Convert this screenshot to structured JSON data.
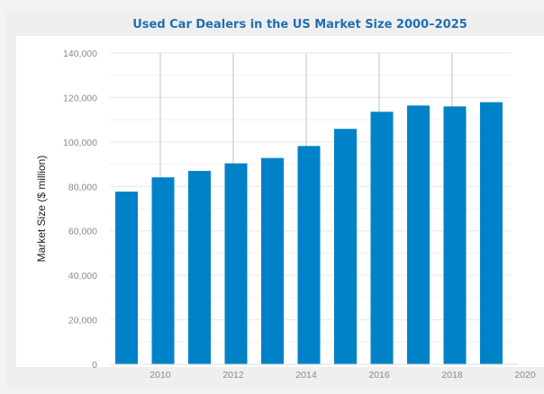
{
  "chart_data": {
    "type": "bar",
    "title": "Used Car Dealers in the US Market Size 2000–2025",
    "xlabel": "",
    "ylabel": "Market Size ($ million)",
    "categories": [
      2009,
      2010,
      2011,
      2012,
      2013,
      2014,
      2015,
      2016,
      2017,
      2018,
      2019
    ],
    "values": [
      77700,
      84100,
      87000,
      90400,
      92800,
      98200,
      105900,
      113600,
      116400,
      116000,
      117900
    ],
    "ylim": [
      0,
      140000
    ],
    "yticks": [
      "0",
      "20,000",
      "40,000",
      "60,000",
      "80,000",
      "100,000",
      "120,000",
      "140,000"
    ],
    "xticks": [
      "2010",
      "2012",
      "2014",
      "2016",
      "2018",
      "2020"
    ],
    "grid": true,
    "bar_color": "#0082c8",
    "title_color": "#1f6fb5"
  }
}
